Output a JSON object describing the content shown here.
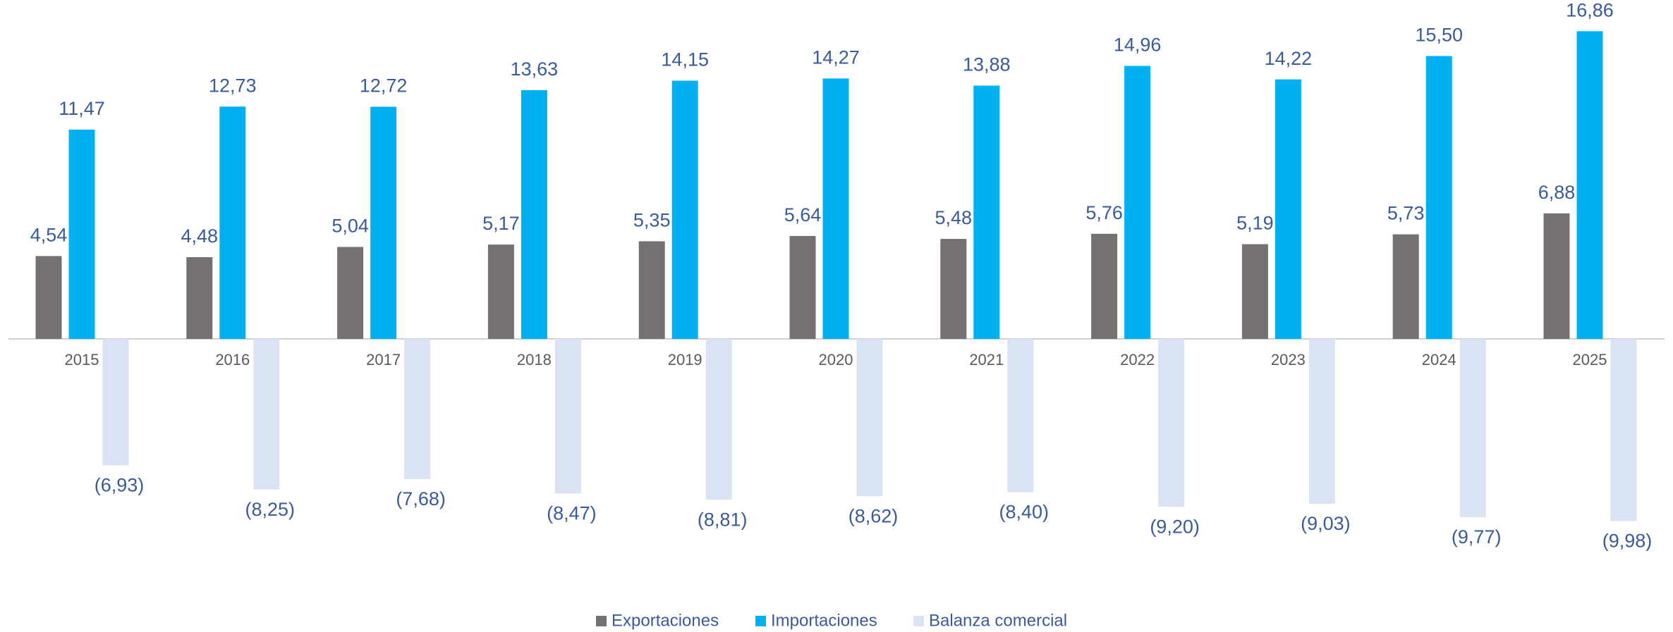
{
  "chart_data": {
    "type": "bar",
    "categories": [
      "2015",
      "2016",
      "2017",
      "2018",
      "2019",
      "2020",
      "2021",
      "2022",
      "2023",
      "2024",
      "2025"
    ],
    "series": [
      {
        "name": "Exportaciones",
        "color": "#767171",
        "values": [
          4.54,
          4.48,
          5.04,
          5.17,
          5.35,
          5.64,
          5.48,
          5.76,
          5.19,
          5.73,
          6.88
        ],
        "value_labels": [
          "4,54",
          "4,48",
          "5,04",
          "5,17",
          "5,35",
          "5,64",
          "5,48",
          "5,76",
          "5,19",
          "5,73",
          "6,88"
        ]
      },
      {
        "name": "Importaciones",
        "color": "#00b0f0",
        "values": [
          11.47,
          12.73,
          12.72,
          13.63,
          14.15,
          14.27,
          13.88,
          14.96,
          14.22,
          15.5,
          16.86
        ],
        "value_labels": [
          "11,47",
          "12,73",
          "12,72",
          "13,63",
          "14,15",
          "14,27",
          "13,88",
          "14,96",
          "14,22",
          "15,50",
          "16,86"
        ]
      },
      {
        "name": "Balanza comercial",
        "color": "#dae3f3",
        "values": [
          -6.93,
          -8.25,
          -7.68,
          -8.47,
          -8.81,
          -8.62,
          -8.4,
          -9.2,
          -9.03,
          -9.77,
          -9.98
        ],
        "value_labels": [
          "(6,93)",
          "(8,25)",
          "(7,68)",
          "(8,47)",
          "(8,81)",
          "(8,62)",
          "(8,40)",
          "(9,20)",
          "(9,03)",
          "(9,77)",
          "(9,98)"
        ]
      }
    ],
    "legend": "bottom"
  }
}
